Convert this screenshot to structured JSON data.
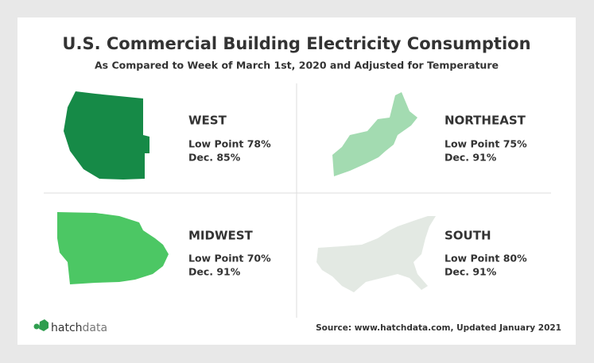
{
  "title": "U.S. Commercial Building Electricity Consumption",
  "subtitle": "As Compared to Week of March 1st, 2020 and Adjusted for Temperature",
  "regions": [
    {
      "name": "WEST",
      "low_point": "Low Point 78%",
      "december": "Dec. 85%"
    },
    {
      "name": "NORTHEAST",
      "low_point": "Low Point 75%",
      "december": "Dec. 91%"
    },
    {
      "name": "MIDWEST",
      "low_point": "Low Point 70%",
      "december": "Dec. 91%"
    },
    {
      "name": "SOUTH",
      "low_point": "Low Point 80%",
      "december": "Dec. 91%"
    }
  ],
  "logo": {
    "prefix": "hatch",
    "suffix": "data"
  },
  "source": "Source: www.hatchdata.com, Updated January 2021"
}
